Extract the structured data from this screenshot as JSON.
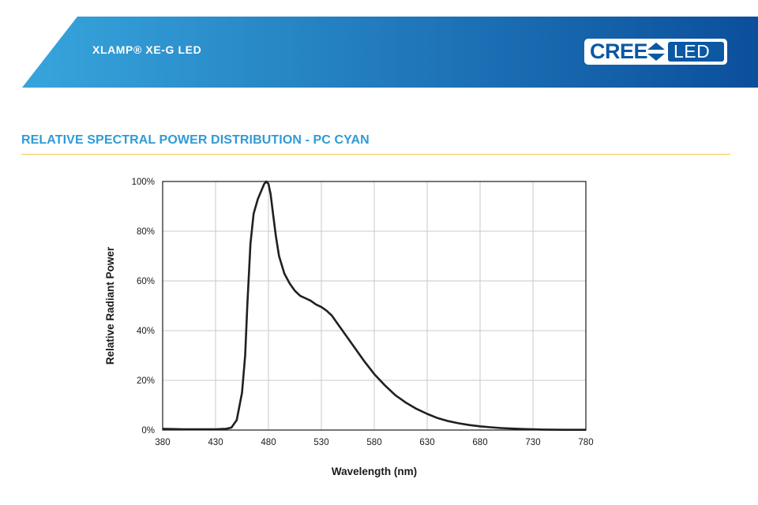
{
  "header": {
    "product_title": "XLAMP® XE-G LED",
    "logo_brand": "CREE",
    "logo_suffix": "LED",
    "gradient_start": "#37a5dc",
    "gradient_end": "#0b4f9c"
  },
  "section": {
    "title": "RELATIVE SPECTRAL POWER DISTRIBUTION - PC CYAN",
    "title_color": "#2f9bd6",
    "rule_color": "#f2c94c"
  },
  "chart_data": {
    "type": "line",
    "title": "",
    "xlabel": "Wavelength (nm)",
    "ylabel": "Relative Radiant Power",
    "xlim": [
      380,
      780
    ],
    "ylim": [
      0,
      100
    ],
    "x_ticks": [
      380,
      430,
      480,
      530,
      580,
      630,
      680,
      730,
      780
    ],
    "y_ticks": [
      0,
      20,
      40,
      60,
      80,
      100
    ],
    "y_tick_labels": [
      "0%",
      "20%",
      "40%",
      "60%",
      "80%",
      "100%"
    ],
    "grid": true,
    "line_color": "#231f20",
    "series": [
      {
        "x": [
          380,
          400,
          420,
          430,
          440,
          445,
          450,
          455,
          458,
          460,
          463,
          466,
          470,
          473,
          476,
          478,
          480,
          482,
          484,
          487,
          490,
          495,
          500,
          505,
          510,
          515,
          520,
          525,
          530,
          535,
          540,
          545,
          550,
          560,
          570,
          580,
          590,
          600,
          610,
          620,
          630,
          640,
          650,
          660,
          670,
          680,
          690,
          700,
          720,
          740,
          760,
          780
        ],
        "y": [
          0.5,
          0.3,
          0.3,
          0.3,
          0.5,
          1,
          4,
          15,
          30,
          50,
          75,
          87,
          93,
          96,
          99,
          100,
          99,
          95,
          88,
          78,
          70,
          63,
          59,
          56,
          54,
          53,
          52,
          50.5,
          49.5,
          48,
          46,
          43,
          40,
          34,
          28,
          22.5,
          18,
          14,
          11,
          8.5,
          6.5,
          4.8,
          3.6,
          2.7,
          2,
          1.5,
          1.1,
          0.8,
          0.4,
          0.2,
          0.1,
          0.1
        ]
      }
    ]
  }
}
